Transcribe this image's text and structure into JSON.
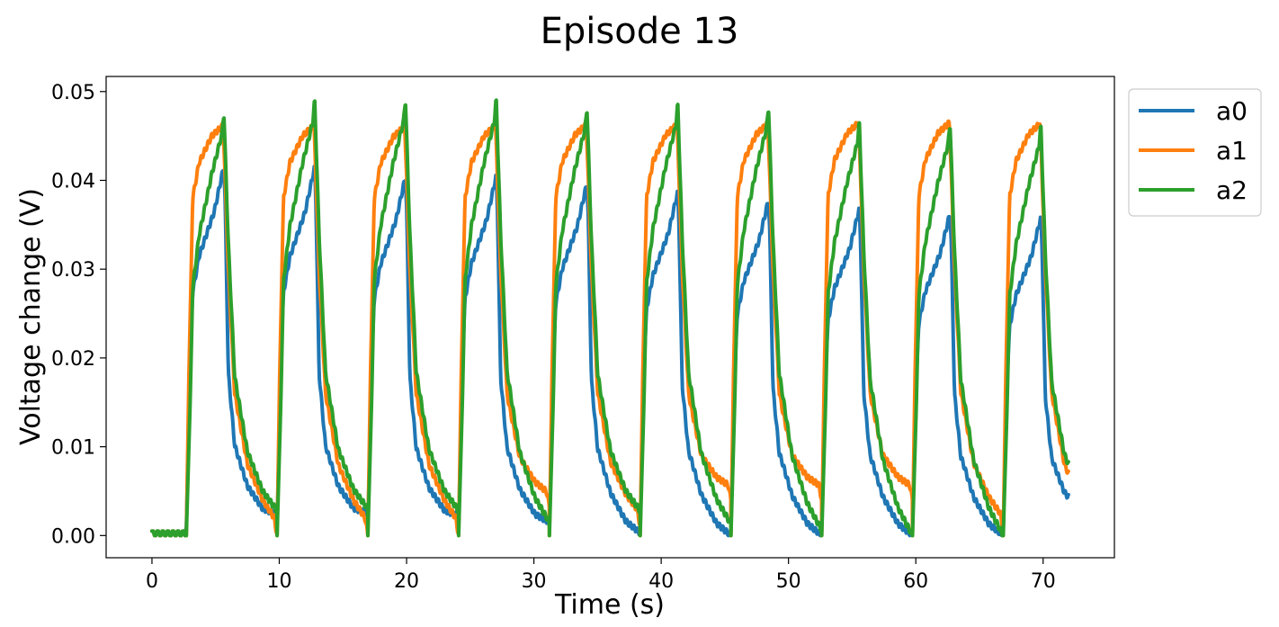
{
  "chart_data": {
    "type": "line",
    "title": "Episode 13",
    "xlabel": "Time (s)",
    "ylabel": "Voltage change (V)",
    "xlim": [
      -3.6,
      75.6
    ],
    "ylim": [
      -0.0025,
      0.0517
    ],
    "xticks": [
      0,
      10,
      20,
      30,
      40,
      50,
      60,
      70
    ],
    "xtick_labels": [
      "0",
      "10",
      "20",
      "30",
      "40",
      "50",
      "60",
      "70"
    ],
    "yticks": [
      0.0,
      0.01,
      0.02,
      0.03,
      0.04,
      0.05
    ],
    "ytick_labels": [
      "0.00",
      "0.01",
      "0.02",
      "0.03",
      "0.04",
      "0.05"
    ],
    "grid": false,
    "legend": "outside upper right",
    "cycle": {
      "period": 7.13,
      "first_rise": 2.7,
      "end": 72.0,
      "baseline_before_first_rise": 0.0005
    },
    "series": [
      {
        "name": "a0",
        "color": "#1f77b4",
        "peaks": [
          0.0416,
          0.0415,
          0.0404,
          0.0405,
          0.0397,
          0.0387,
          0.0378,
          0.0368,
          0.0363,
          0.0358
        ],
        "cycle_end_levels": [
          0.0024,
          0.0025,
          0.0022,
          0.0015,
          0.0003,
          0.0,
          0.0,
          0.0,
          0.0
        ],
        "profile": [
          [
            0.0,
            0.001
          ],
          [
            0.3,
            0.02
          ],
          [
            0.5,
            0.027
          ],
          [
            1.0,
            0.031
          ],
          [
            2.2,
            0.036
          ],
          [
            2.95,
            0.041
          ],
          [
            3.05,
            0.037
          ],
          [
            3.3,
            0.018
          ],
          [
            3.8,
            0.01
          ],
          [
            4.8,
            0.0055
          ],
          [
            6.0,
            0.003
          ],
          [
            7.13,
            0.0024
          ]
        ]
      },
      {
        "name": "a1",
        "color": "#ff7f0e",
        "peaks": [
          0.0462,
          0.0462,
          0.0461,
          0.0462,
          0.0463,
          0.0463,
          0.0464,
          0.0465,
          0.0465,
          0.0464
        ],
        "cycle_end_levels": [
          0.0,
          0.0,
          0.0,
          0.0032,
          0.001,
          0.004,
          0.004,
          0.004,
          0.0005
        ],
        "profile": [
          [
            0.0,
            0.0
          ],
          [
            0.2,
            0.018
          ],
          [
            0.5,
            0.038
          ],
          [
            1.0,
            0.042
          ],
          [
            2.0,
            0.045
          ],
          [
            2.9,
            0.0462
          ],
          [
            3.3,
            0.03
          ],
          [
            3.8,
            0.016
          ],
          [
            4.8,
            0.008
          ],
          [
            6.0,
            0.004
          ],
          [
            6.9,
            0.002
          ],
          [
            7.13,
            0.0
          ]
        ]
      },
      {
        "name": "a2",
        "color": "#2ca02c",
        "peaks": [
          0.0477,
          0.0491,
          0.0492,
          0.0492,
          0.0483,
          0.0487,
          0.0484,
          0.0466,
          0.0465,
          0.0462
        ],
        "cycle_end_levels": [
          0.0028,
          0.003,
          0.0028,
          0.0015,
          0.0028,
          0.0013,
          0.0006,
          0.0,
          0.0
        ],
        "profile": [
          [
            0.0,
            0.0
          ],
          [
            0.3,
            0.015
          ],
          [
            0.5,
            0.028
          ],
          [
            1.0,
            0.034
          ],
          [
            2.0,
            0.041
          ],
          [
            2.8,
            0.0455
          ],
          [
            2.95,
            0.048
          ],
          [
            3.3,
            0.033
          ],
          [
            3.8,
            0.018
          ],
          [
            4.8,
            0.0095
          ],
          [
            6.0,
            0.005
          ],
          [
            7.13,
            0.0028
          ]
        ]
      }
    ]
  }
}
